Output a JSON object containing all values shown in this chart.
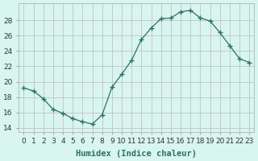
{
  "x": [
    0,
    1,
    2,
    3,
    4,
    5,
    6,
    7,
    8,
    9,
    10,
    11,
    12,
    13,
    14,
    15,
    16,
    17,
    18,
    19,
    20,
    21,
    22,
    23
  ],
  "y": [
    19.2,
    18.8,
    17.8,
    16.4,
    15.9,
    15.2,
    14.8,
    14.5,
    15.7,
    19.3,
    21.0,
    22.8,
    25.5,
    27.0,
    28.2,
    28.3,
    29.1,
    29.3,
    28.3,
    27.9,
    26.4,
    24.7,
    23.0,
    22.5
  ],
  "line_color": "#2d7068",
  "bg_color": "#d8f5f0",
  "grid_color": "#c0b8b8",
  "xlabel": "Humidex (Indice chaleur)",
  "xlim": [
    -0.5,
    23.5
  ],
  "ylim": [
    13.5,
    30.2
  ],
  "yticks": [
    14,
    16,
    18,
    20,
    22,
    24,
    26,
    28
  ],
  "xtick_labels": [
    "0",
    "1",
    "2",
    "3",
    "4",
    "5",
    "6",
    "7",
    "8",
    "9",
    "10",
    "11",
    "12",
    "13",
    "14",
    "15",
    "16",
    "17",
    "18",
    "19",
    "20",
    "21",
    "22",
    "23"
  ],
  "label_fontsize": 7.5,
  "tick_fontsize": 6.5
}
